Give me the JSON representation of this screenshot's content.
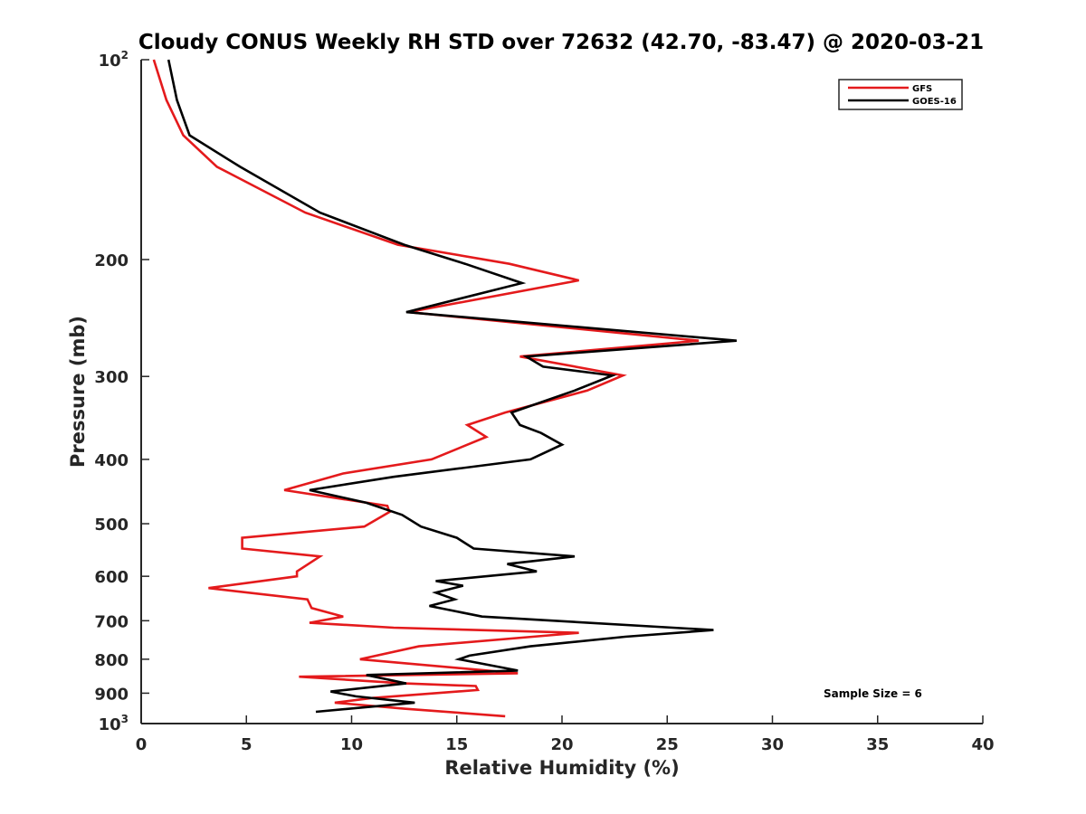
{
  "chart_data": {
    "type": "line",
    "title": "Cloudy CONUS Weekly RH STD over 72632 (42.70, -83.47) @ 2020-03-21",
    "xlabel": "Relative Humidity (%)",
    "ylabel": "Pressure (mb)",
    "xlim": [
      0,
      40
    ],
    "ylim": [
      100,
      1000
    ],
    "y_scale": "log",
    "y_reversed": true,
    "grid": false,
    "legend_position": "top-right",
    "x_ticks": [
      0,
      5,
      10,
      15,
      20,
      25,
      30,
      35,
      40
    ],
    "y_ticks": [
      {
        "label": "10",
        "sup": "2",
        "value": 100
      },
      {
        "label": "200",
        "sup": "",
        "value": 200
      },
      {
        "label": "300",
        "sup": "",
        "value": 300
      },
      {
        "label": "400",
        "sup": "",
        "value": 400
      },
      {
        "label": "500",
        "sup": "",
        "value": 500
      },
      {
        "label": "600",
        "sup": "",
        "value": 600
      },
      {
        "label": "700",
        "sup": "",
        "value": 700
      },
      {
        "label": "800",
        "sup": "",
        "value": 800
      },
      {
        "label": "900",
        "sup": "",
        "value": 900
      },
      {
        "label": "10",
        "sup": "3",
        "value": 1000
      }
    ],
    "series": [
      {
        "name": "GFS",
        "color": "#e41a1c",
        "points": [
          [
            0.6,
            100
          ],
          [
            1.2,
            115
          ],
          [
            2.0,
            130
          ],
          [
            3.6,
            145
          ],
          [
            7.8,
            170
          ],
          [
            12.2,
            190
          ],
          [
            17.5,
            203
          ],
          [
            20.8,
            215
          ],
          [
            12.7,
            240
          ],
          [
            26.5,
            265
          ],
          [
            18.0,
            280
          ],
          [
            22.9,
            299
          ],
          [
            21.2,
            315
          ],
          [
            17.3,
            340
          ],
          [
            15.5,
            355
          ],
          [
            16.4,
            370
          ],
          [
            13.8,
            400
          ],
          [
            9.6,
            420
          ],
          [
            6.8,
            445
          ],
          [
            11.7,
            470
          ],
          [
            11.8,
            480
          ],
          [
            10.6,
            505
          ],
          [
            4.8,
            525
          ],
          [
            4.8,
            545
          ],
          [
            8.5,
            560
          ],
          [
            7.4,
            590
          ],
          [
            7.4,
            600
          ],
          [
            3.2,
            625
          ],
          [
            7.9,
            650
          ],
          [
            8.1,
            670
          ],
          [
            9.6,
            690
          ],
          [
            8.0,
            705
          ],
          [
            12.0,
            717
          ],
          [
            20.8,
            730
          ],
          [
            13.2,
            765
          ],
          [
            10.4,
            800
          ],
          [
            17.9,
            840
          ],
          [
            7.5,
            850
          ],
          [
            12.5,
            870
          ],
          [
            15.9,
            878
          ],
          [
            16.0,
            890
          ],
          [
            11.0,
            915
          ],
          [
            9.2,
            930
          ],
          [
            12.5,
            950
          ],
          [
            17.3,
            975
          ]
        ]
      },
      {
        "name": "GOES-16",
        "color": "#000000",
        "points": [
          [
            1.3,
            100
          ],
          [
            1.7,
            115
          ],
          [
            2.3,
            130
          ],
          [
            4.7,
            145
          ],
          [
            8.5,
            170
          ],
          [
            12.5,
            190
          ],
          [
            15.4,
            203
          ],
          [
            18.1,
            217
          ],
          [
            12.6,
            240
          ],
          [
            28.3,
            265
          ],
          [
            18.3,
            280
          ],
          [
            19.1,
            290
          ],
          [
            22.4,
            299
          ],
          [
            20.6,
            315
          ],
          [
            17.6,
            340
          ],
          [
            18.0,
            355
          ],
          [
            19.0,
            365
          ],
          [
            20.0,
            380
          ],
          [
            18.5,
            400
          ],
          [
            12.0,
            425
          ],
          [
            8.0,
            445
          ],
          [
            10.7,
            465
          ],
          [
            12.4,
            485
          ],
          [
            13.3,
            505
          ],
          [
            15.0,
            525
          ],
          [
            15.8,
            545
          ],
          [
            20.6,
            560
          ],
          [
            17.4,
            575
          ],
          [
            18.8,
            590
          ],
          [
            14.0,
            610
          ],
          [
            15.3,
            620
          ],
          [
            14.0,
            635
          ],
          [
            14.9,
            650
          ],
          [
            13.7,
            665
          ],
          [
            16.2,
            690
          ],
          [
            27.2,
            723
          ],
          [
            23.0,
            740
          ],
          [
            18.5,
            765
          ],
          [
            15.6,
            790
          ],
          [
            15.1,
            800
          ],
          [
            17.9,
            832
          ],
          [
            10.7,
            845
          ],
          [
            12.6,
            870
          ],
          [
            9.0,
            895
          ],
          [
            10.2,
            910
          ],
          [
            13.0,
            930
          ],
          [
            8.3,
            960
          ]
        ]
      }
    ],
    "annotations": [
      "Sample Size = 6"
    ]
  }
}
